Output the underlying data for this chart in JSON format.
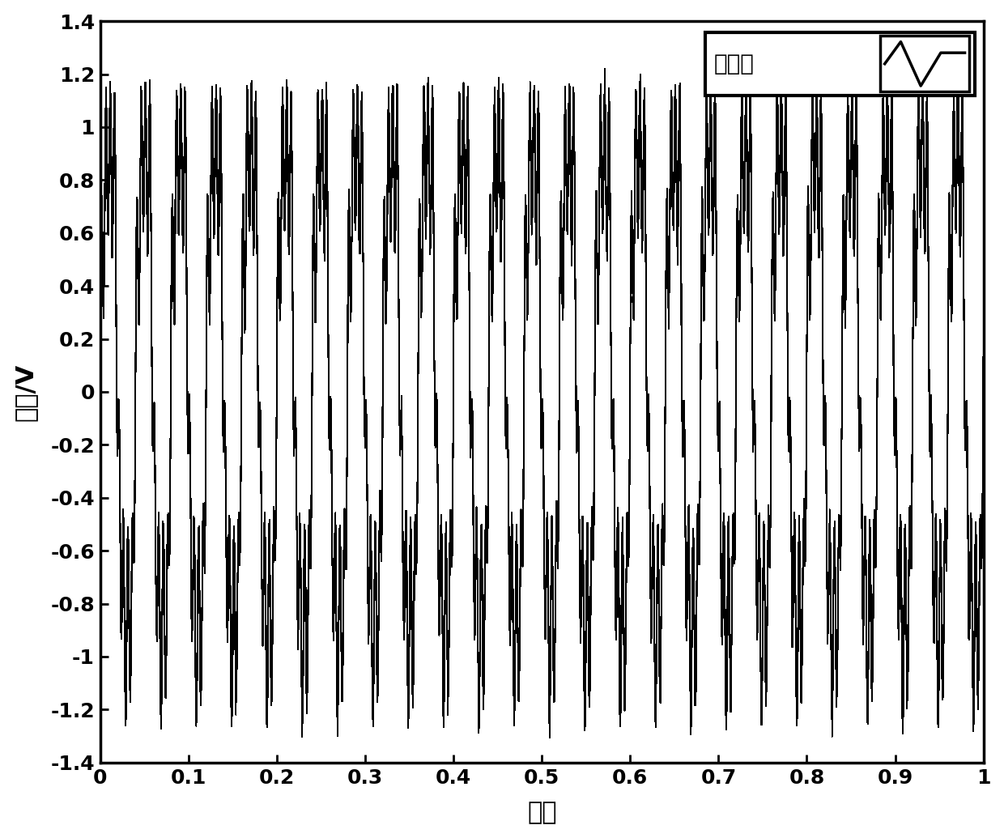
{
  "title": "",
  "xlabel": "时间",
  "ylabel": "幅値/V",
  "xlim": [
    0,
    1
  ],
  "ylim": [
    -1.4,
    1.4
  ],
  "yticks": [
    -1.4,
    -1.2,
    -1.0,
    -0.8,
    -0.6,
    -0.4,
    -0.2,
    0,
    0.2,
    0.4,
    0.6,
    0.8,
    1.0,
    1.2,
    1.4
  ],
  "xticks": [
    0,
    0.1,
    0.2,
    0.3,
    0.4,
    0.5,
    0.6,
    0.7,
    0.8,
    0.9,
    1.0
  ],
  "legend_label": "信号源",
  "line_color": "#000000",
  "background_color": "#ffffff",
  "figsize": [
    12.4,
    10.35
  ],
  "dpi": 100,
  "main_freq": 25,
  "noise_amp": 0.28,
  "noise_freq": 200,
  "main_amp": 1.0,
  "num_points": 50000,
  "seed": 42
}
